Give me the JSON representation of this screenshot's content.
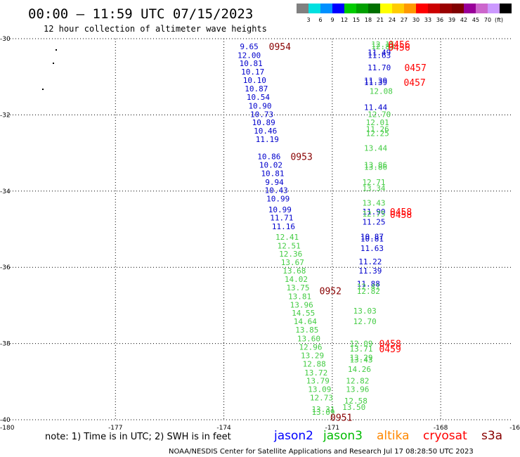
{
  "header": {
    "title": "00:00 — 11:59 UTC 07/15/2023",
    "subtitle": "12 hour collection of altimeter wave heights"
  },
  "colorbar": {
    "colors": [
      "#808080",
      "#00e0e0",
      "#0090ff",
      "#0000ff",
      "#00cc00",
      "#00a000",
      "#007000",
      "#ffff00",
      "#ffcc00",
      "#ff9900",
      "#ff0000",
      "#cc0000",
      "#990000",
      "#800000",
      "#990099",
      "#cc66cc",
      "#cc99ff",
      "#000000"
    ],
    "labels": [
      "3",
      "6",
      "9",
      "12",
      "15",
      "18",
      "21",
      "24",
      "27",
      "30",
      "33",
      "36",
      "39",
      "42",
      "45",
      "70"
    ],
    "unit": "(ft)"
  },
  "footer": {
    "note": "note:  1) Time is in UTC;  2) SWH is in feet",
    "legend": [
      {
        "name": "jason2",
        "color": "#0000ff"
      },
      {
        "name": "jason3",
        "color": "#00bb00"
      },
      {
        "name": "altika",
        "color": "#ff8800"
      },
      {
        "name": "cryosat",
        "color": "#ff0000"
      },
      {
        "name": "s3a",
        "color": "#880000"
      }
    ],
    "credit": "NOAA/NESDIS Center for Satellite Applications and Research    Jul 17 08:28:50 UTC 2023"
  },
  "chart_data": {
    "type": "scatter",
    "xlim": [
      -180,
      -166
    ],
    "ylim": [
      -40,
      -30
    ],
    "x_ticks": [
      "-180",
      "-177",
      "-174",
      "-171",
      "-168",
      "-16"
    ],
    "y_ticks": [
      "-30",
      "-32",
      "-34",
      "-36",
      "-38",
      "-40"
    ],
    "grid": true,
    "series": [
      {
        "name": "jason2",
        "color": "#0000cc",
        "points": [
          {
            "lon": -173.3,
            "lat": -30.2,
            "v": "9.65"
          },
          {
            "lon": -173.3,
            "lat": -30.43,
            "v": "12.00"
          },
          {
            "lon": -173.25,
            "lat": -30.65,
            "v": "10.81"
          },
          {
            "lon": -173.2,
            "lat": -30.87,
            "v": "10.17"
          },
          {
            "lon": -173.15,
            "lat": -31.09,
            "v": "10.10"
          },
          {
            "lon": -173.1,
            "lat": -31.31,
            "v": "10.87"
          },
          {
            "lon": -173.05,
            "lat": -31.53,
            "v": "10.54"
          },
          {
            "lon": -173.0,
            "lat": -31.76,
            "v": "10.90"
          },
          {
            "lon": -172.95,
            "lat": -31.98,
            "v": "10.73"
          },
          {
            "lon": -172.9,
            "lat": -32.2,
            "v": "10.89"
          },
          {
            "lon": -172.85,
            "lat": -32.42,
            "v": "10.46"
          },
          {
            "lon": -172.8,
            "lat": -32.64,
            "v": "11.19"
          },
          {
            "lon": -172.75,
            "lat": -33.09,
            "v": "10.86"
          },
          {
            "lon": -172.7,
            "lat": -33.31,
            "v": "10.02"
          },
          {
            "lon": -172.65,
            "lat": -33.53,
            "v": "10.81"
          },
          {
            "lon": -172.6,
            "lat": -33.76,
            "v": "9.94"
          },
          {
            "lon": -172.55,
            "lat": -33.98,
            "v": "10.43"
          },
          {
            "lon": -172.5,
            "lat": -34.2,
            "v": "10.99"
          },
          {
            "lon": -172.45,
            "lat": -34.48,
            "v": "10.99"
          },
          {
            "lon": -172.4,
            "lat": -34.7,
            "v": "11.71"
          },
          {
            "lon": -172.35,
            "lat": -34.93,
            "v": "11.16"
          },
          {
            "lon": -169.7,
            "lat": -30.36,
            "v": "11.49"
          },
          {
            "lon": -169.7,
            "lat": -30.43,
            "v": "11.63"
          },
          {
            "lon": -169.7,
            "lat": -30.76,
            "v": "11.70"
          },
          {
            "lon": -169.8,
            "lat": -31.1,
            "v": "11.39"
          },
          {
            "lon": -169.8,
            "lat": -31.14,
            "v": "11.39"
          },
          {
            "lon": -169.8,
            "lat": -31.8,
            "v": "11.44"
          },
          {
            "lon": -169.85,
            "lat": -34.54,
            "v": "11.90"
          },
          {
            "lon": -169.85,
            "lat": -34.81,
            "v": "11.25"
          },
          {
            "lon": -169.9,
            "lat": -35.19,
            "v": "10.87"
          },
          {
            "lon": -169.9,
            "lat": -35.25,
            "v": "10.81"
          },
          {
            "lon": -169.9,
            "lat": -35.5,
            "v": "11.63"
          },
          {
            "lon": -169.95,
            "lat": -35.85,
            "v": "11.22"
          },
          {
            "lon": -169.95,
            "lat": -36.09,
            "v": "11.39"
          },
          {
            "lon": -170.0,
            "lat": -36.43,
            "v": "11.88"
          }
        ]
      },
      {
        "name": "jason3",
        "color": "#44cc44",
        "points": [
          {
            "lon": -172.25,
            "lat": -35.2,
            "v": "12.41"
          },
          {
            "lon": -172.2,
            "lat": -35.43,
            "v": "12.51"
          },
          {
            "lon": -172.15,
            "lat": -35.65,
            "v": "12.36"
          },
          {
            "lon": -172.1,
            "lat": -35.87,
            "v": "13.67"
          },
          {
            "lon": -172.05,
            "lat": -36.09,
            "v": "13.68"
          },
          {
            "lon": -172.0,
            "lat": -36.31,
            "v": "14.02"
          },
          {
            "lon": -171.95,
            "lat": -36.53,
            "v": "13.75"
          },
          {
            "lon": -171.9,
            "lat": -36.76,
            "v": "13.81"
          },
          {
            "lon": -171.85,
            "lat": -36.98,
            "v": "13.96"
          },
          {
            "lon": -171.8,
            "lat": -37.2,
            "v": "14.55"
          },
          {
            "lon": -171.75,
            "lat": -37.42,
            "v": "14.64"
          },
          {
            "lon": -171.7,
            "lat": -37.64,
            "v": "13.85"
          },
          {
            "lon": -171.65,
            "lat": -37.87,
            "v": "13.60"
          },
          {
            "lon": -171.6,
            "lat": -38.09,
            "v": "12.96"
          },
          {
            "lon": -171.55,
            "lat": -38.31,
            "v": "13.29"
          },
          {
            "lon": -171.5,
            "lat": -38.53,
            "v": "12.88"
          },
          {
            "lon": -171.45,
            "lat": -38.76,
            "v": "13.72"
          },
          {
            "lon": -171.4,
            "lat": -38.98,
            "v": "13.79"
          },
          {
            "lon": -171.35,
            "lat": -39.2,
            "v": "13.09"
          },
          {
            "lon": -171.3,
            "lat": -39.42,
            "v": "12.73"
          },
          {
            "lon": -171.25,
            "lat": -39.72,
            "v": "13.31"
          },
          {
            "lon": -171.25,
            "lat": -39.8,
            "v": "13.09"
          },
          {
            "lon": -169.6,
            "lat": -30.15,
            "v": "12.15"
          },
          {
            "lon": -169.6,
            "lat": -30.2,
            "v": "12.83"
          },
          {
            "lon": -169.65,
            "lat": -31.37,
            "v": "12.08"
          },
          {
            "lon": -169.7,
            "lat": -31.98,
            "v": "12.70"
          },
          {
            "lon": -169.75,
            "lat": -32.2,
            "v": "12.01"
          },
          {
            "lon": -169.75,
            "lat": -32.37,
            "v": "11.26"
          },
          {
            "lon": -169.75,
            "lat": -32.48,
            "v": "12.25"
          },
          {
            "lon": -169.8,
            "lat": -32.87,
            "v": "13.44"
          },
          {
            "lon": -169.8,
            "lat": -33.31,
            "v": "13.86"
          },
          {
            "lon": -169.8,
            "lat": -33.37,
            "v": "13.86"
          },
          {
            "lon": -169.85,
            "lat": -33.76,
            "v": "12.71"
          },
          {
            "lon": -169.85,
            "lat": -33.92,
            "v": "13.34"
          },
          {
            "lon": -169.85,
            "lat": -34.31,
            "v": "13.43"
          },
          {
            "lon": -169.85,
            "lat": -34.59,
            "v": "12.75"
          },
          {
            "lon": -170.0,
            "lat": -36.5,
            "v": "12.41"
          },
          {
            "lon": -170.0,
            "lat": -36.62,
            "v": "12.82"
          },
          {
            "lon": -170.1,
            "lat": -37.14,
            "v": "13.03"
          },
          {
            "lon": -170.1,
            "lat": -37.42,
            "v": "12.70"
          },
          {
            "lon": -170.2,
            "lat": -38.0,
            "v": "12.09"
          },
          {
            "lon": -170.2,
            "lat": -38.14,
            "v": "13.71"
          },
          {
            "lon": -170.2,
            "lat": -38.37,
            "v": "13.29"
          },
          {
            "lon": -170.2,
            "lat": -38.42,
            "v": "13.43"
          },
          {
            "lon": -170.25,
            "lat": -38.67,
            "v": "14.26"
          },
          {
            "lon": -170.3,
            "lat": -38.98,
            "v": "12.82"
          },
          {
            "lon": -170.3,
            "lat": -39.2,
            "v": "13.96"
          },
          {
            "lon": -170.35,
            "lat": -39.5,
            "v": "12.58"
          },
          {
            "lon": -170.4,
            "lat": -39.67,
            "v": "13.50"
          }
        ]
      }
    ],
    "times": [
      {
        "label": "0954",
        "lon": -172.45,
        "lat": -30.2,
        "color": "#880000"
      },
      {
        "label": "0953",
        "lon": -171.85,
        "lat": -33.09,
        "color": "#880000"
      },
      {
        "label": "0952",
        "lon": -171.05,
        "lat": -36.61,
        "color": "#880000"
      },
      {
        "label": "0951",
        "lon": -170.75,
        "lat": -39.94,
        "color": "#880000"
      },
      {
        "label": "0456",
        "lon": -169.15,
        "lat": -30.15,
        "color": "#ff0000"
      },
      {
        "label": "0456",
        "lon": -169.15,
        "lat": -30.22,
        "color": "#ff0000"
      },
      {
        "label": "0457",
        "lon": -168.7,
        "lat": -30.76,
        "color": "#ff0000"
      },
      {
        "label": "0457",
        "lon": -168.72,
        "lat": -31.14,
        "color": "#ff0000"
      },
      {
        "label": "0458",
        "lon": -169.1,
        "lat": -34.54,
        "color": "#ff0000"
      },
      {
        "label": "0458",
        "lon": -169.1,
        "lat": -34.61,
        "color": "#ff0000"
      },
      {
        "label": "0458",
        "lon": -169.4,
        "lat": -38.0,
        "color": "#ff0000"
      },
      {
        "label": "0459",
        "lon": -169.4,
        "lat": -38.14,
        "color": "#ff0000"
      }
    ]
  }
}
